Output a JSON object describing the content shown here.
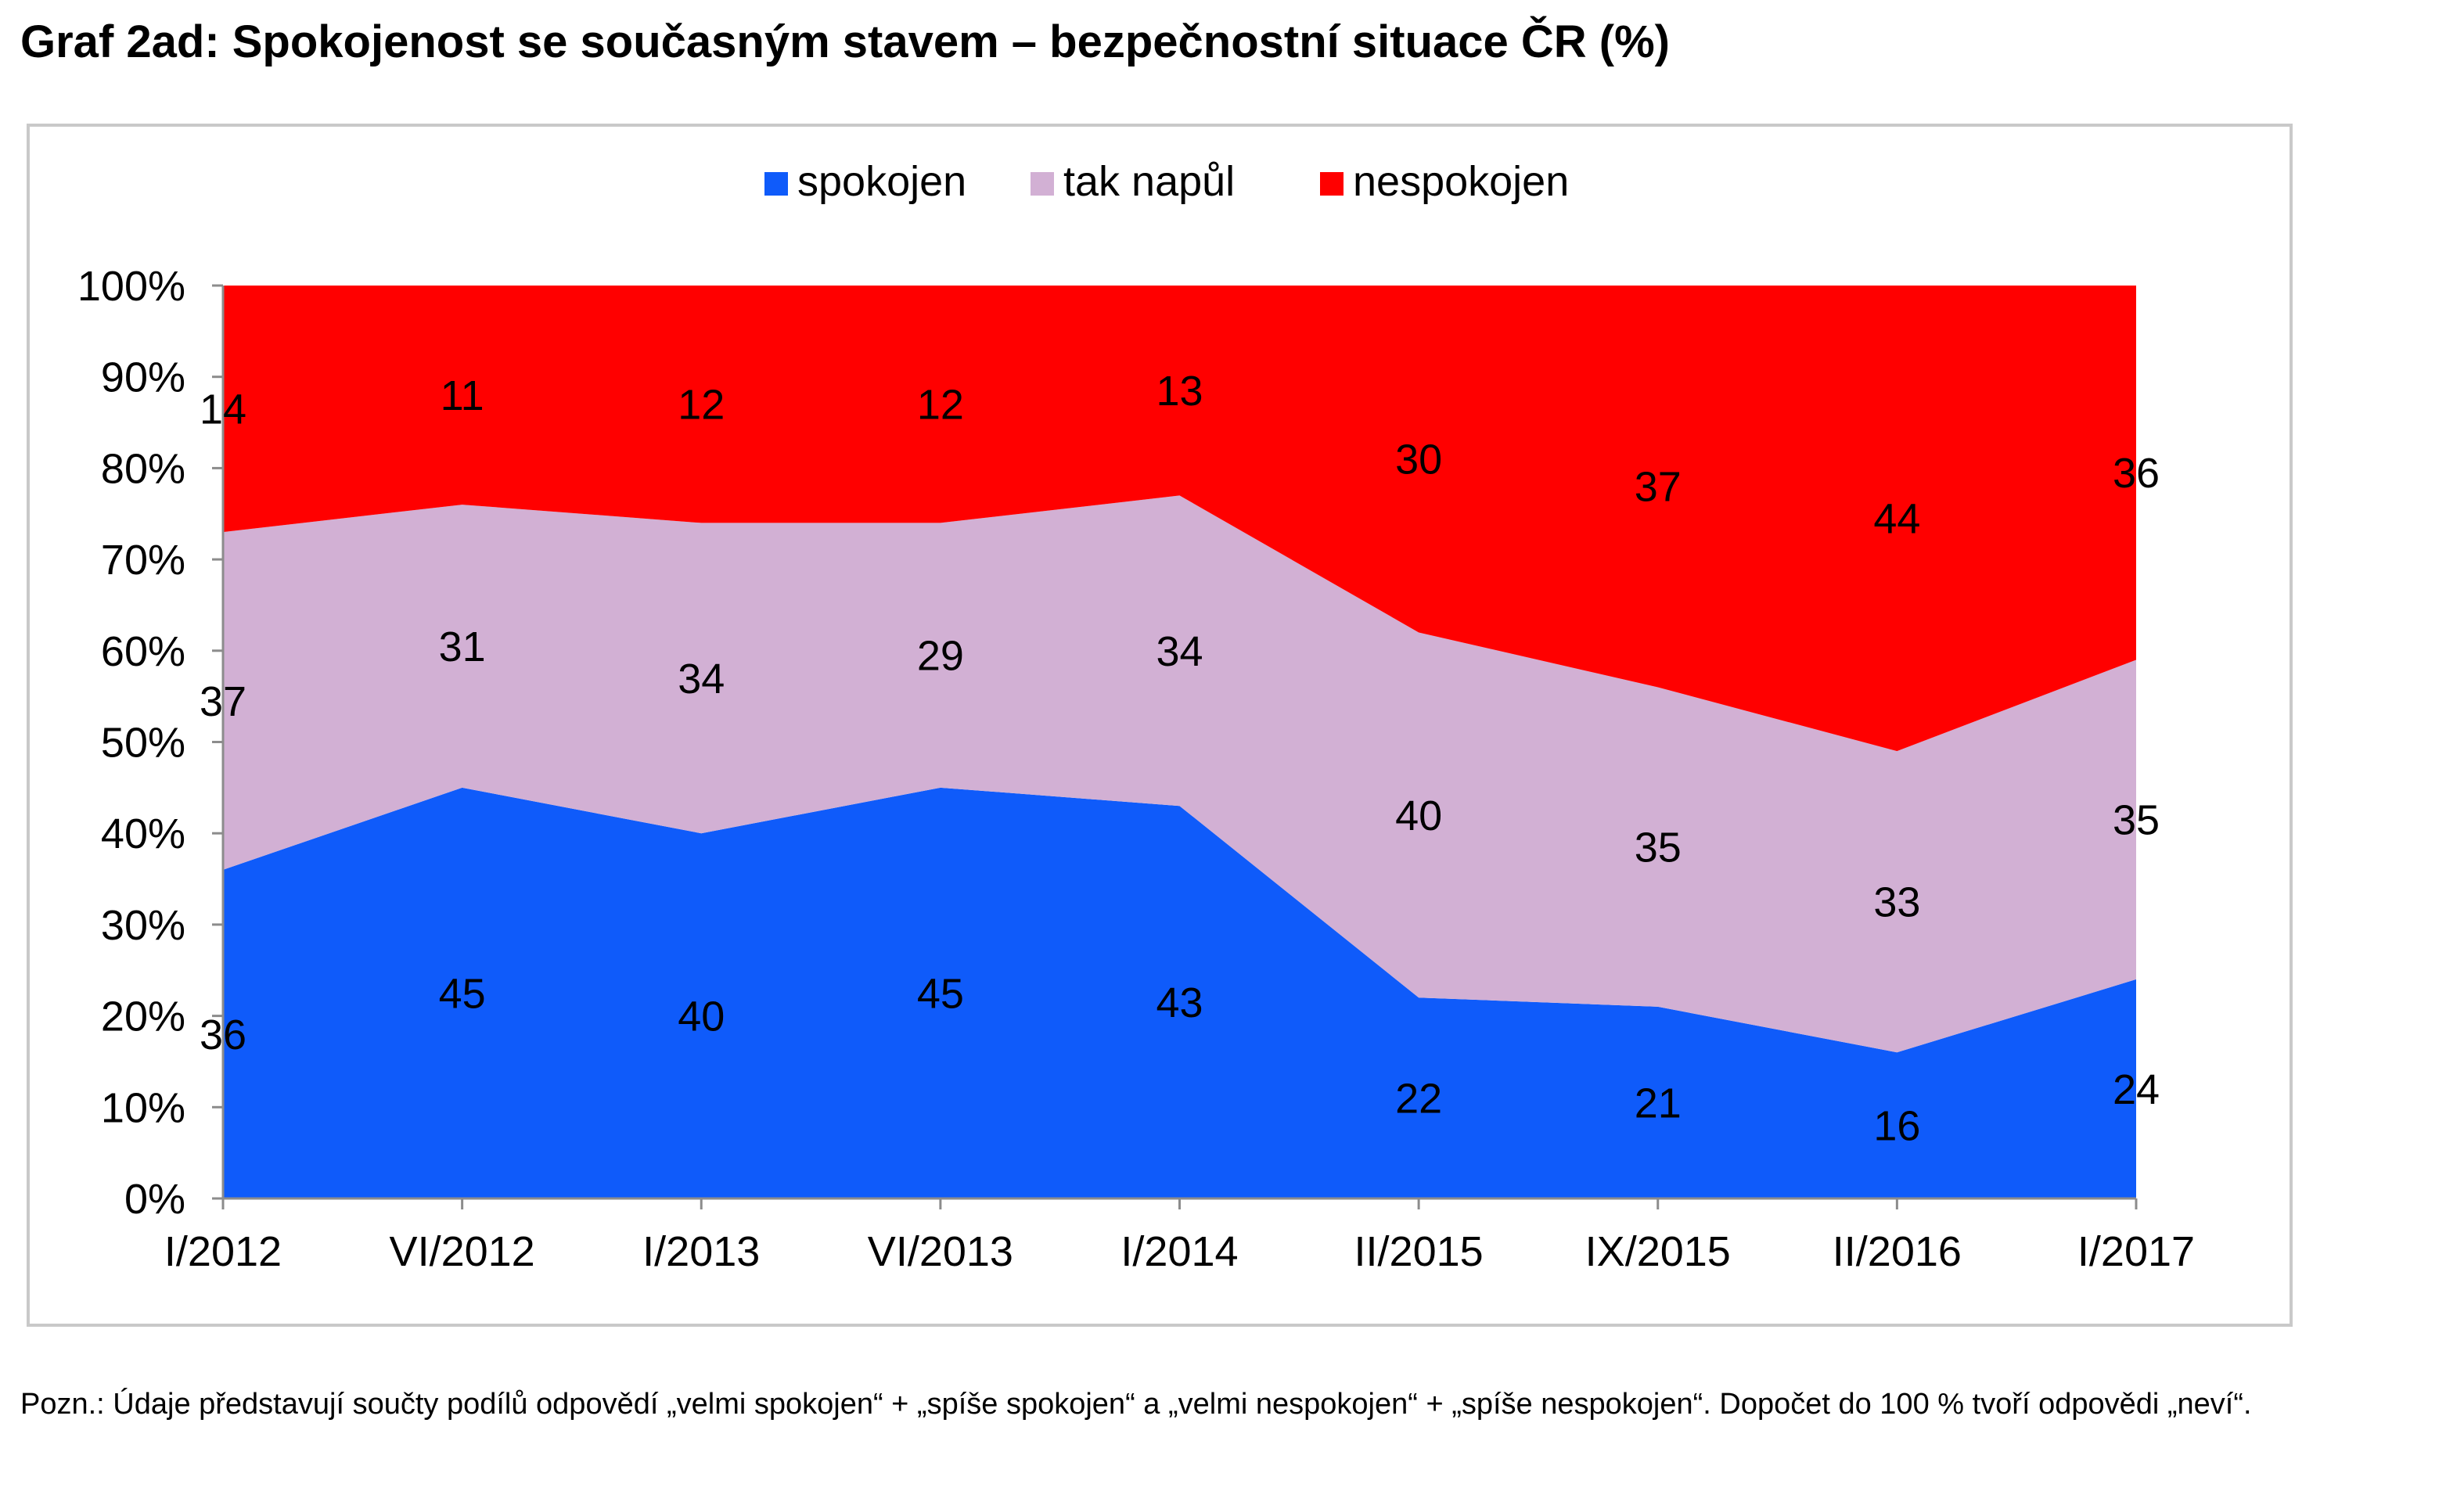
{
  "title": "Graf 2ad: Spokojenost se současným stavem – bezpečnostní situace ČR (%)",
  "note": "Pozn.: Údaje představují součty podílů odpovědí „velmi spokojen“ + „spíše spokojen“ a „velmi nespokojen“ + „spíše nespokojen“. Dopočet do 100 % tvoří odpovědi „neví“.",
  "chart_data": {
    "type": "area",
    "stacked": true,
    "percent": true,
    "categories": [
      "I/2012",
      "VI/2012",
      "I/2013",
      "VI/2013",
      "I/2014",
      "II/2015",
      "IX/2015",
      "II/2016",
      "I/2017"
    ],
    "series": [
      {
        "name": "spokojen",
        "values": [
          36,
          45,
          40,
          45,
          43,
          22,
          21,
          16,
          24
        ],
        "color": "#0f5bfa"
      },
      {
        "name": "tak napůl",
        "values": [
          37,
          31,
          34,
          29,
          34,
          40,
          35,
          33,
          35
        ],
        "color": "#d2b0d4"
      },
      {
        "name": "nespokojen",
        "values": [
          14,
          11,
          12,
          12,
          13,
          30,
          37,
          44,
          36
        ],
        "color": "#ff0000"
      }
    ],
    "yticks": [
      "0%",
      "10%",
      "20%",
      "30%",
      "40%",
      "50%",
      "60%",
      "70%",
      "80%",
      "90%",
      "100%"
    ],
    "ylim": [
      0,
      100
    ],
    "legend": "top-center",
    "grid": false
  }
}
